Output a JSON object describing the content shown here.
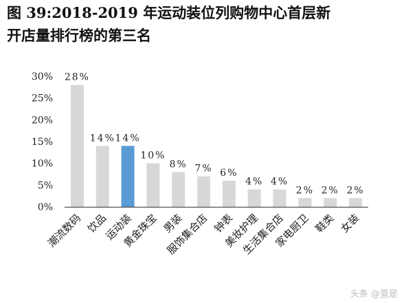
{
  "title": {
    "line1": "图 39:2018-2019 年运动装位列购物中心首层新",
    "line2": "开店量排行榜的第三名"
  },
  "watermark": "头条 @萱是",
  "colors": {
    "bar": "#d8d8d8",
    "highlight": "#5b9bd5",
    "axis": "#333333",
    "text": "#222222"
  },
  "chart_data": {
    "type": "bar",
    "title": "",
    "xlabel": "",
    "ylabel": "",
    "categories": [
      "潮流数码",
      "饮品",
      "运动装",
      "黄金珠宝",
      "男装",
      "服饰集合店",
      "钟表",
      "美妆护理",
      "生活集合店",
      "家电厨卫",
      "鞋类",
      "女装"
    ],
    "values": [
      28,
      14,
      14,
      10,
      8,
      7,
      6,
      4,
      4,
      2,
      2,
      2
    ],
    "value_labels": [
      "28%",
      "14%",
      "14%",
      "10%",
      "8%",
      "7%",
      "6%",
      "4%",
      "4%",
      "2%",
      "2%",
      "2%"
    ],
    "y_ticks": [
      0,
      5,
      10,
      15,
      20,
      25,
      30
    ],
    "y_tick_labels": [
      "0%",
      "5%",
      "10%",
      "15%",
      "20%",
      "25%",
      "30%"
    ],
    "ylim": [
      0,
      30
    ],
    "highlight_index": 2,
    "grid": false,
    "legend": "none"
  }
}
